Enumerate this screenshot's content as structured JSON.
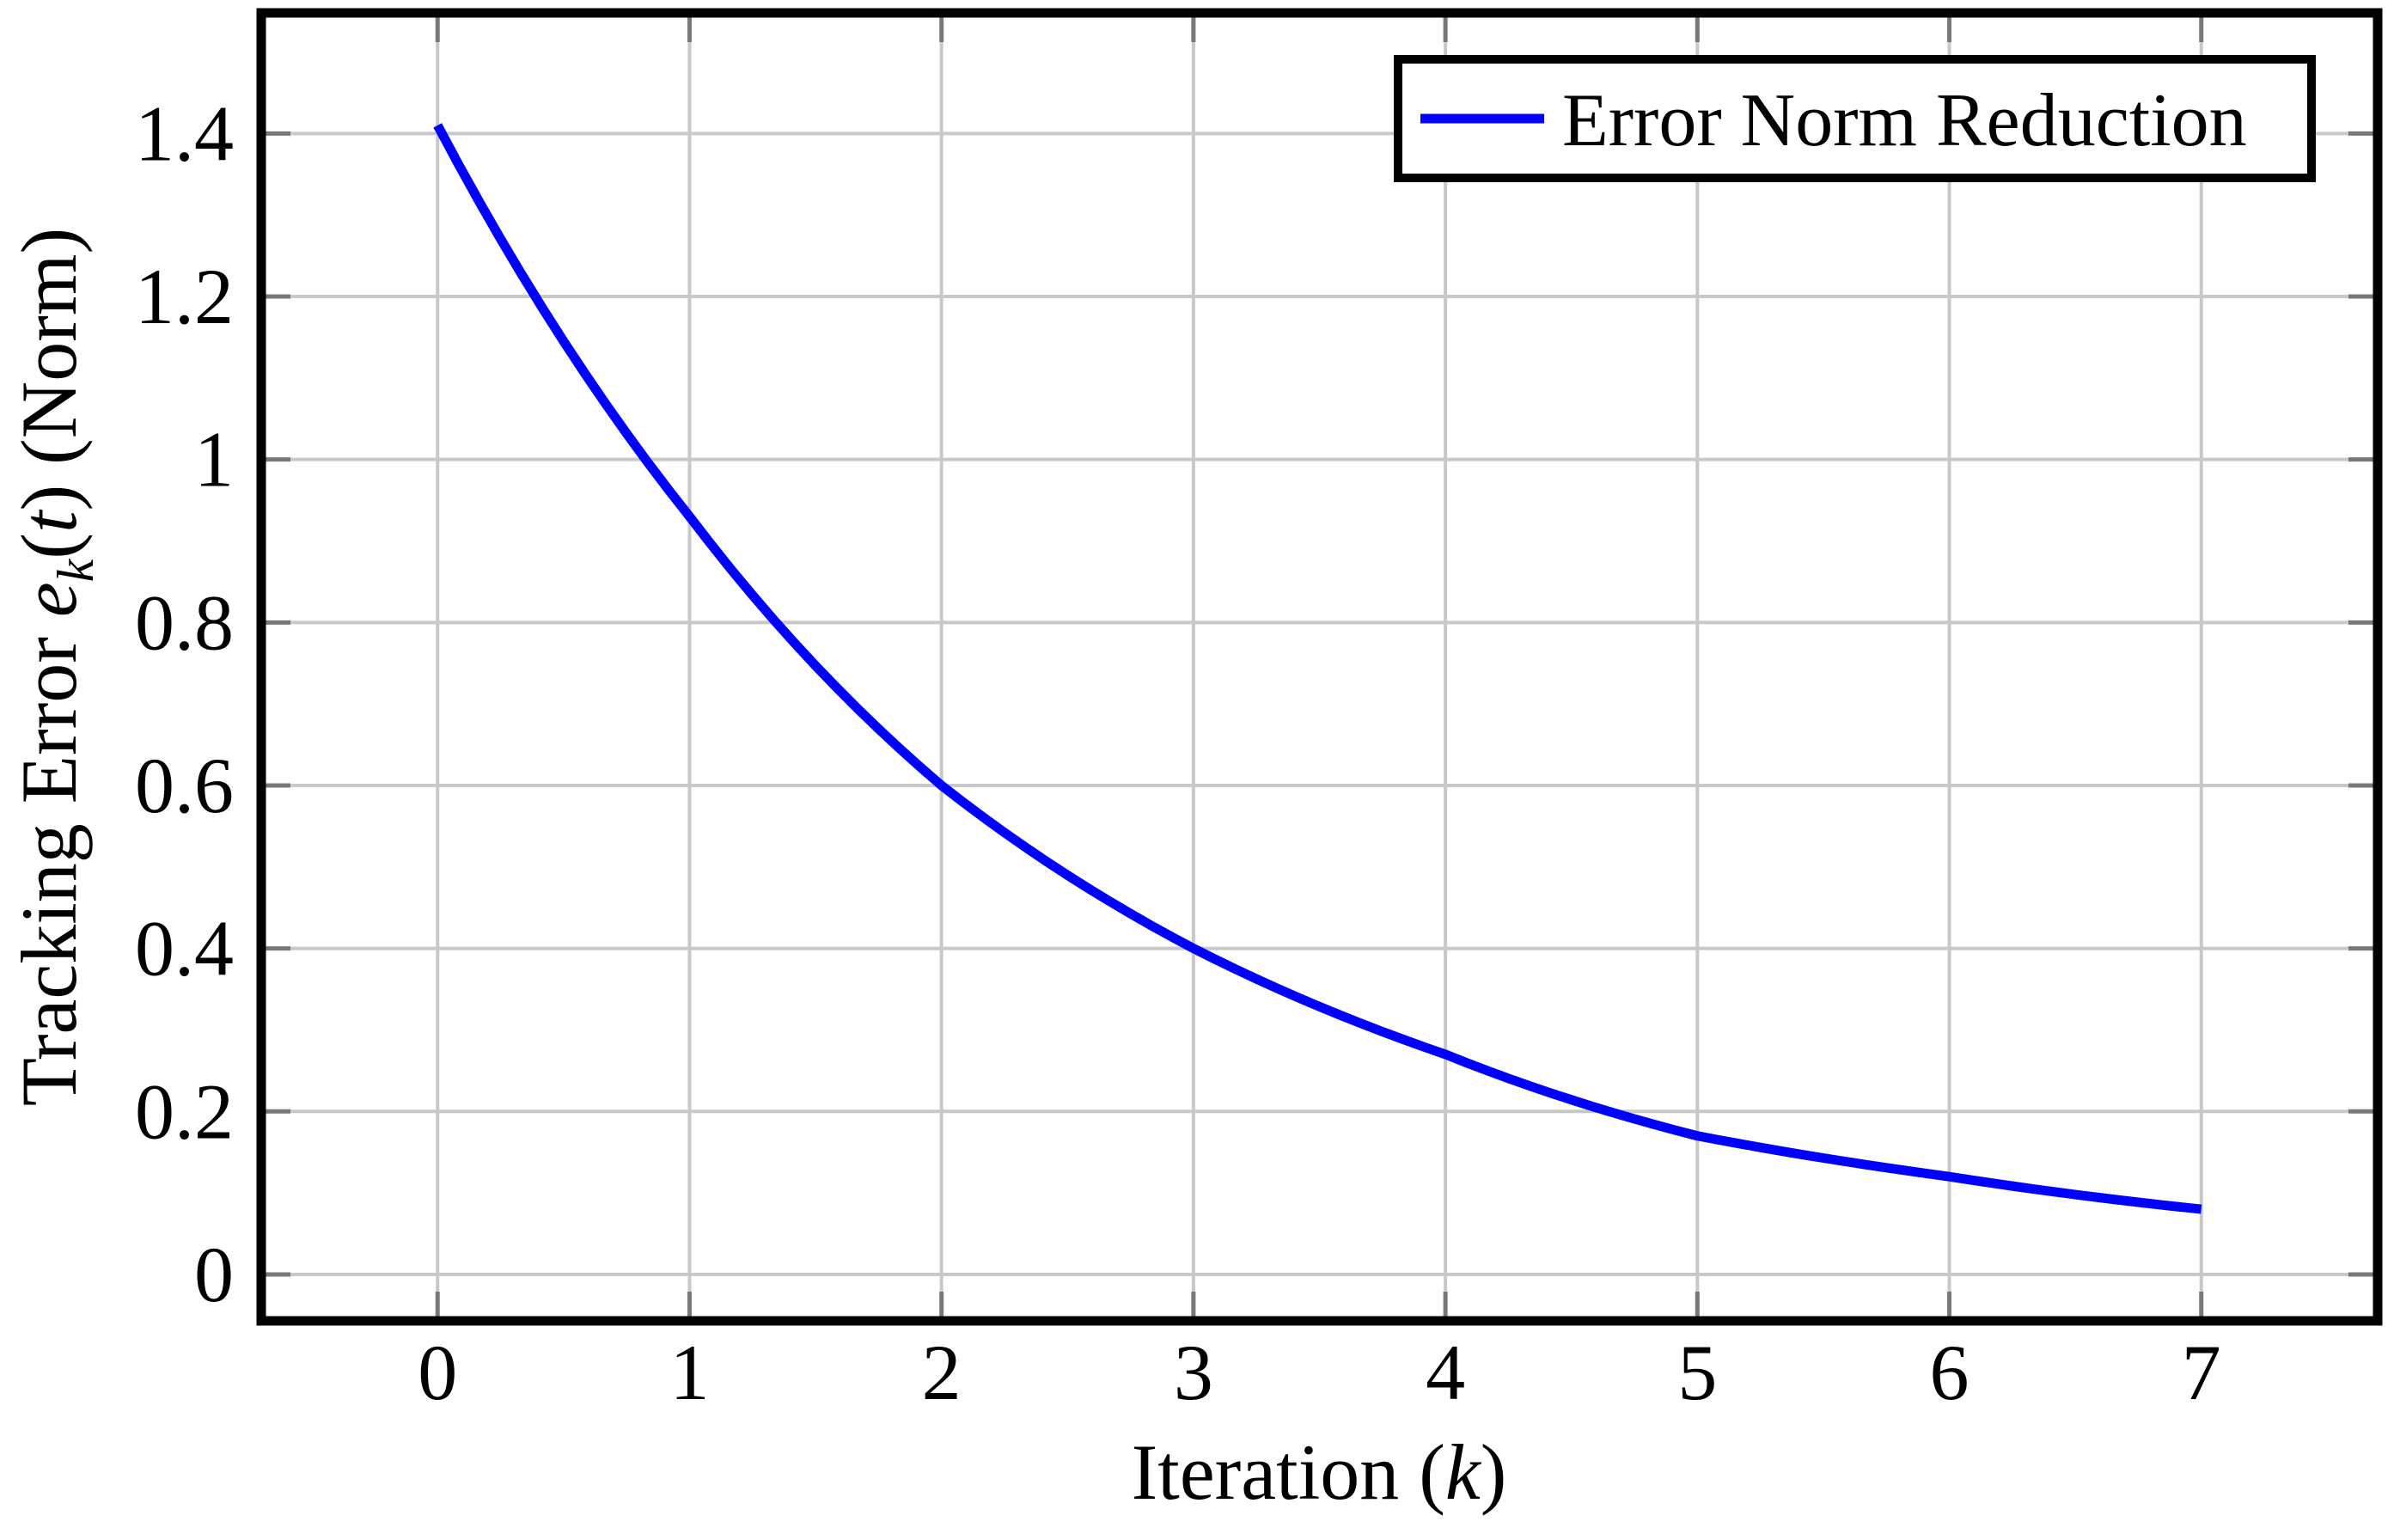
{
  "chart_data": {
    "type": "line",
    "title": "",
    "xlabel": "Iteration (k)",
    "ylabel": "Tracking Error e_k(t) (Norm)",
    "xlabel_parts": {
      "prefix": "Iteration (",
      "var": "k",
      "suffix": ")"
    },
    "ylabel_parts": {
      "prefix": "Tracking Error ",
      "var": "e",
      "sub": "k",
      "mid": "(",
      "var2": "t",
      "suffix": ") (Norm)"
    },
    "legend": [
      "Error Norm Reduction"
    ],
    "legend_position": "top-right",
    "grid": true,
    "x": [
      0,
      1,
      2,
      3,
      4,
      5,
      6,
      7
    ],
    "series": [
      {
        "name": "Error Norm Reduction",
        "color": "#0000ff",
        "values": [
          1.41,
          0.93,
          0.6,
          0.4,
          0.27,
          0.17,
          0.12,
          0.08
        ]
      }
    ],
    "xlim": [
      -0.7,
      7.7
    ],
    "ylim": [
      -0.057,
      1.548
    ],
    "xticks": [
      "0",
      "1",
      "2",
      "3",
      "4",
      "5",
      "6",
      "7"
    ],
    "xtick_values": [
      0,
      1,
      2,
      3,
      4,
      5,
      6,
      7
    ],
    "yticks": [
      "0",
      "0.2",
      "0.4",
      "0.6",
      "0.8",
      "1",
      "1.2",
      "1.4"
    ],
    "ytick_values": [
      0,
      0.2,
      0.4,
      0.6,
      0.8,
      1.0,
      1.2,
      1.4
    ],
    "colors": {
      "curve": "#0000ff",
      "grid": "#c8c8c8",
      "tick": "#787878",
      "frame": "#000000",
      "text": "#000000",
      "legend_border": "#000000",
      "background": "#ffffff"
    }
  }
}
